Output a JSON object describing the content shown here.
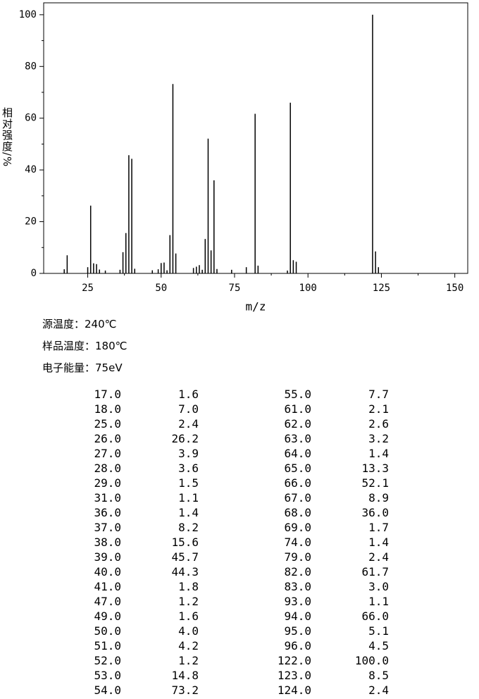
{
  "chart_data": {
    "type": "stem",
    "x_label": "m/z",
    "y_label": "相对强度/%",
    "x": [
      17,
      18,
      25,
      26,
      27,
      28,
      29,
      31,
      36,
      37,
      38,
      39,
      40,
      41,
      47,
      49,
      50,
      51,
      52,
      53,
      54,
      55,
      61,
      62,
      63,
      64,
      65,
      66,
      67,
      68,
      69,
      74,
      79,
      82,
      83,
      93,
      94,
      95,
      96,
      122,
      123,
      124
    ],
    "values": [
      1.6,
      7.0,
      2.4,
      26.2,
      3.9,
      3.6,
      1.5,
      1.1,
      1.4,
      8.2,
      15.6,
      45.7,
      44.3,
      1.8,
      1.2,
      1.6,
      4.0,
      4.2,
      1.2,
      14.8,
      73.2,
      7.7,
      2.1,
      2.6,
      3.2,
      1.4,
      13.3,
      52.1,
      8.9,
      36.0,
      1.7,
      1.4,
      2.4,
      61.7,
      3.0,
      1.1,
      66.0,
      5.1,
      4.5,
      100.0,
      8.5,
      2.4
    ],
    "color": "#000000",
    "xlim": [
      10,
      154.4
    ],
    "ylim": [
      0,
      104.6
    ],
    "xticks": [
      25,
      50,
      75,
      100,
      125,
      150
    ],
    "yticks": [
      0,
      20,
      40,
      60,
      80,
      100
    ],
    "grid": false
  },
  "info": [
    "源温度：240℃",
    "样品温度：180℃",
    "电子能量：75eV"
  ],
  "table": {
    "rows": [
      [
        "17.0",
        "1.6",
        "55.0",
        "7.7"
      ],
      [
        "18.0",
        "7.0",
        "61.0",
        "2.1"
      ],
      [
        "25.0",
        "2.4",
        "62.0",
        "2.6"
      ],
      [
        "26.0",
        "26.2",
        "63.0",
        "3.2"
      ],
      [
        "27.0",
        "3.9",
        "64.0",
        "1.4"
      ],
      [
        "28.0",
        "3.6",
        "65.0",
        "13.3"
      ],
      [
        "29.0",
        "1.5",
        "66.0",
        "52.1"
      ],
      [
        "31.0",
        "1.1",
        "67.0",
        "8.9"
      ],
      [
        "36.0",
        "1.4",
        "68.0",
        "36.0"
      ],
      [
        "37.0",
        "8.2",
        "69.0",
        "1.7"
      ],
      [
        "38.0",
        "15.6",
        "74.0",
        "1.4"
      ],
      [
        "39.0",
        "45.7",
        "79.0",
        "2.4"
      ],
      [
        "40.0",
        "44.3",
        "82.0",
        "61.7"
      ],
      [
        "41.0",
        "1.8",
        "83.0",
        "3.0"
      ],
      [
        "47.0",
        "1.2",
        "93.0",
        "1.1"
      ],
      [
        "49.0",
        "1.6",
        "94.0",
        "66.0"
      ],
      [
        "50.0",
        "4.0",
        "95.0",
        "5.1"
      ],
      [
        "51.0",
        "4.2",
        "96.0",
        "4.5"
      ],
      [
        "52.0",
        "1.2",
        "122.0",
        "100.0"
      ],
      [
        "53.0",
        "14.8",
        "123.0",
        "8.5"
      ],
      [
        "54.0",
        "73.2",
        "124.0",
        "2.4"
      ]
    ]
  }
}
